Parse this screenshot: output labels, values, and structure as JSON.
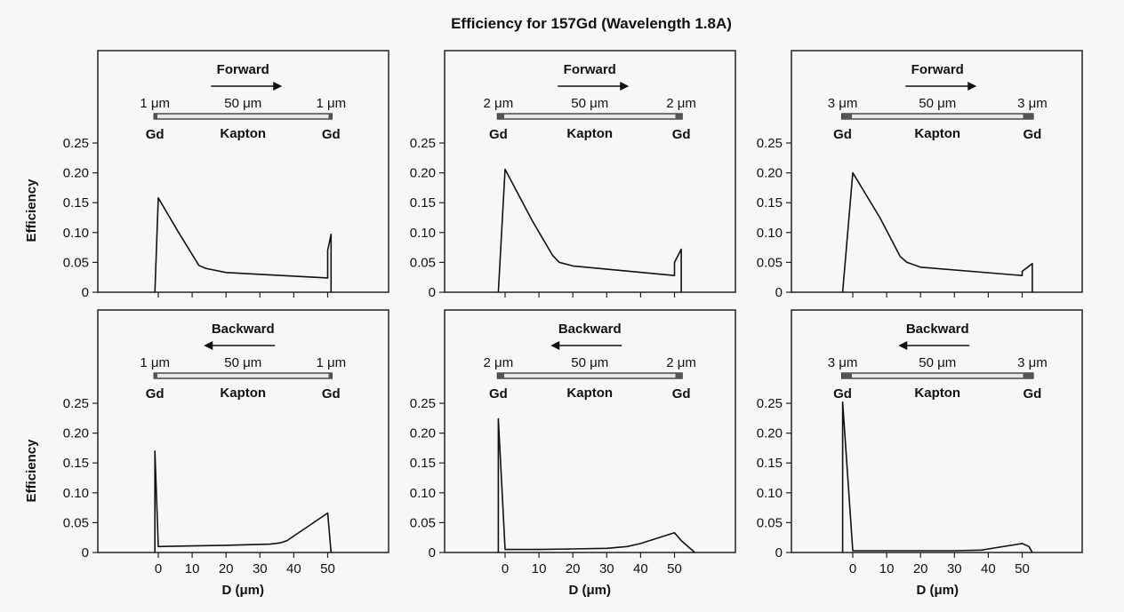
{
  "figure": {
    "title": "Efficiency for 157Gd (Wavelength 1.8A)",
    "ylabel": "Efficiency",
    "xlabel": "D (μm)"
  },
  "chart_data": [
    {
      "type": "line",
      "direction": "Forward",
      "gd_thickness_label": "1 μm",
      "kapton_label": "50 μm",
      "left_material": "Gd",
      "middle_material": "Kapton",
      "right_material": "Gd",
      "ylim": [
        0,
        0.25
      ],
      "yticks": [
        "0.25",
        "0.20",
        "0.15",
        "0.10",
        "0.05",
        "0"
      ],
      "xticks": [],
      "xlim": [
        -1,
        51
      ],
      "series": [
        {
          "x": [
            -1,
            0,
            6,
            12,
            14,
            20,
            50,
            50,
            51,
            51
          ],
          "y": [
            0,
            0.158,
            0.1,
            0.045,
            0.04,
            0.033,
            0.024,
            0.07,
            0.097,
            0
          ]
        }
      ]
    },
    {
      "type": "line",
      "direction": "Forward",
      "gd_thickness_label": "2 μm",
      "kapton_label": "50 μm",
      "left_material": "Gd",
      "middle_material": "Kapton",
      "right_material": "Gd",
      "ylim": [
        0,
        0.25
      ],
      "yticks": [
        "0.25",
        "0.20",
        "0.15",
        "0.10",
        "0.05",
        "0"
      ],
      "xticks": [],
      "xlim": [
        -2,
        52
      ],
      "series": [
        {
          "x": [
            -2,
            0,
            8,
            14,
            16,
            20,
            50,
            50,
            52,
            52
          ],
          "y": [
            0,
            0.206,
            0.12,
            0.062,
            0.05,
            0.044,
            0.028,
            0.05,
            0.072,
            0
          ]
        }
      ]
    },
    {
      "type": "line",
      "direction": "Forward",
      "gd_thickness_label": "3 μm",
      "kapton_label": "50 μm",
      "left_material": "Gd",
      "middle_material": "Kapton",
      "right_material": "Gd",
      "ylim": [
        0,
        0.25
      ],
      "yticks": [
        "0.25",
        "0.20",
        "0.15",
        "0.10",
        "0.05",
        "0"
      ],
      "xticks": [],
      "xlim": [
        -3,
        53
      ],
      "series": [
        {
          "x": [
            -3,
            0,
            8,
            14,
            16,
            20,
            50,
            50,
            53,
            53
          ],
          "y": [
            0,
            0.2,
            0.125,
            0.06,
            0.05,
            0.042,
            0.028,
            0.035,
            0.048,
            0
          ]
        }
      ]
    },
    {
      "type": "line",
      "direction": "Backward",
      "gd_thickness_label": "1 μm",
      "kapton_label": "50 μm",
      "left_material": "Gd",
      "middle_material": "Kapton",
      "right_material": "Gd",
      "ylim": [
        0,
        0.25
      ],
      "yticks": [
        "0.25",
        "0.20",
        "0.15",
        "0.10",
        "0.05",
        "0"
      ],
      "xticks": [
        "0",
        "10",
        "20",
        "30",
        "40",
        "50"
      ],
      "xlim": [
        -1,
        51
      ],
      "series": [
        {
          "x": [
            -1,
            -1,
            0,
            10,
            20,
            33,
            36,
            38,
            50,
            51
          ],
          "y": [
            0,
            0.17,
            0.01,
            0.011,
            0.012,
            0.014,
            0.016,
            0.02,
            0.066,
            0
          ]
        }
      ]
    },
    {
      "type": "line",
      "direction": "Backward",
      "gd_thickness_label": "2 μm",
      "kapton_label": "50 μm",
      "left_material": "Gd",
      "middle_material": "Kapton",
      "right_material": "Gd",
      "ylim": [
        0,
        0.25
      ],
      "yticks": [
        "0.25",
        "0.20",
        "0.15",
        "0.10",
        "0.05",
        "0"
      ],
      "xticks": [
        "0",
        "10",
        "20",
        "30",
        "40",
        "50"
      ],
      "xlim": [
        -2,
        52
      ],
      "series": [
        {
          "x": [
            -2,
            -2,
            0,
            10,
            20,
            30,
            36,
            40,
            50,
            52,
            56
          ],
          "y": [
            0,
            0.224,
            0.005,
            0.005,
            0.006,
            0.007,
            0.01,
            0.015,
            0.033,
            0.02,
            0
          ]
        }
      ]
    },
    {
      "type": "line",
      "direction": "Backward",
      "gd_thickness_label": "3 μm",
      "kapton_label": "50 μm",
      "left_material": "Gd",
      "middle_material": "Kapton",
      "right_material": "Gd",
      "ylim": [
        0,
        0.25
      ],
      "yticks": [
        "0.25",
        "0.20",
        "0.15",
        "0.10",
        "0.05",
        "0"
      ],
      "xticks": [
        "0",
        "10",
        "20",
        "30",
        "40",
        "50"
      ],
      "xlim": [
        -3,
        53
      ],
      "series": [
        {
          "x": [
            -3,
            -3,
            0,
            10,
            20,
            30,
            38,
            40,
            50,
            52,
            53
          ],
          "y": [
            0,
            0.252,
            0.003,
            0.003,
            0.003,
            0.003,
            0.004,
            0.006,
            0.015,
            0.01,
            0
          ]
        }
      ]
    }
  ]
}
